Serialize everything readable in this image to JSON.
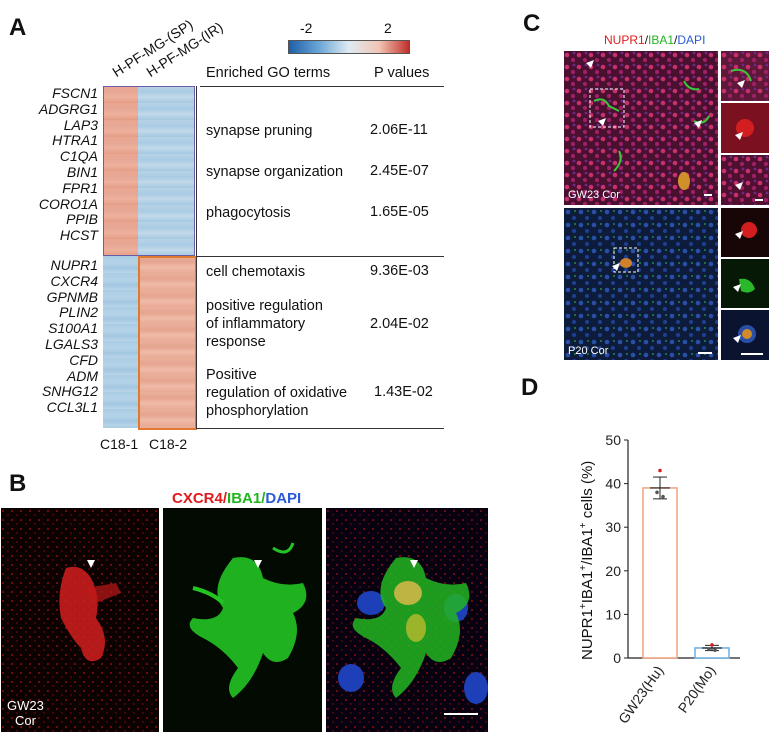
{
  "panels": {
    "A": "A",
    "B": "B",
    "C": "C",
    "D": "D"
  },
  "panelA": {
    "col_headers": [
      "H-PF-MG-(SP)",
      "H-PF-MG-(IR)"
    ],
    "legend": {
      "min": "-2",
      "max": "2"
    },
    "table_headers": {
      "go": "Enriched GO terms",
      "p": "P values"
    },
    "genes_top": [
      "FSCN1",
      "ADGRG1",
      "LAP3",
      "HTRA1",
      "C1QA",
      "BIN1",
      "FPR1",
      "CORO1A",
      "PPIB",
      "HCST"
    ],
    "genes_bottom": [
      "NUPR1",
      "CXCR4",
      "GPNMB",
      "PLIN2",
      "S100A1",
      "LGALS3",
      "CFD",
      "ADM",
      "SNHG12",
      "CCL3L1"
    ],
    "go_top": [
      {
        "term": "synapse pruning",
        "p": "2.06E-11"
      },
      {
        "term": "synapse organization",
        "p": "2.45E-07"
      },
      {
        "term": "phagocytosis",
        "p": "1.65E-05"
      }
    ],
    "go_bottom": [
      {
        "term": "cell chemotaxis",
        "p": "9.36E-03"
      },
      {
        "term_lines": [
          "positive regulation",
          "of inflammatory",
          "response"
        ],
        "p": "2.04E-02"
      },
      {
        "term_lines": [
          "Positive",
          "regulation of oxidative",
          "phosphorylation"
        ],
        "p": "1.43E-02"
      }
    ],
    "cluster_labels": [
      "C18-1",
      "C18-2"
    ],
    "colors": {
      "high": "#e8a08a",
      "low": "#a9cfe6",
      "box_top": "#7b6fb0",
      "box_bottom": "#e07a2e"
    }
  },
  "panelB": {
    "title": {
      "a": "CXCR4",
      "sep1": "/",
      "b": "IBA1",
      "sep2": "/",
      "c": "DAPI"
    },
    "label_lines": [
      "GW23",
      "Cor"
    ],
    "colors": {
      "red": "#e01b1b",
      "green": "#22b522",
      "blue": "#2a5bd6"
    }
  },
  "panelC": {
    "title": {
      "a": "NUPR1",
      "sep1": "/",
      "b": "IBA1",
      "sep2": "/",
      "c": "DAPI"
    },
    "label_top": "GW23 Cor",
    "label_bottom": "P20 Cor"
  },
  "chart_data": {
    "type": "bar",
    "categories": [
      "GW23(Hu)",
      "P20(Mo)"
    ],
    "values": [
      39,
      2.3
    ],
    "errors": [
      2.5,
      0.6
    ],
    "points": [
      [
        43,
        38,
        37
      ],
      [
        3.0,
        2.0,
        1.8
      ]
    ],
    "ylabel_parts": {
      "a": "NUPR1",
      "b": "+",
      "c": "IBA1",
      "d": "+",
      "e": "/IBA1",
      "f": "+",
      "g": " cells (%)"
    },
    "ylim": [
      0,
      50
    ],
    "yticks": [
      "0",
      "10",
      "20",
      "30",
      "40",
      "50"
    ],
    "colors": [
      "#f0a27c",
      "#6aaee0"
    ]
  }
}
